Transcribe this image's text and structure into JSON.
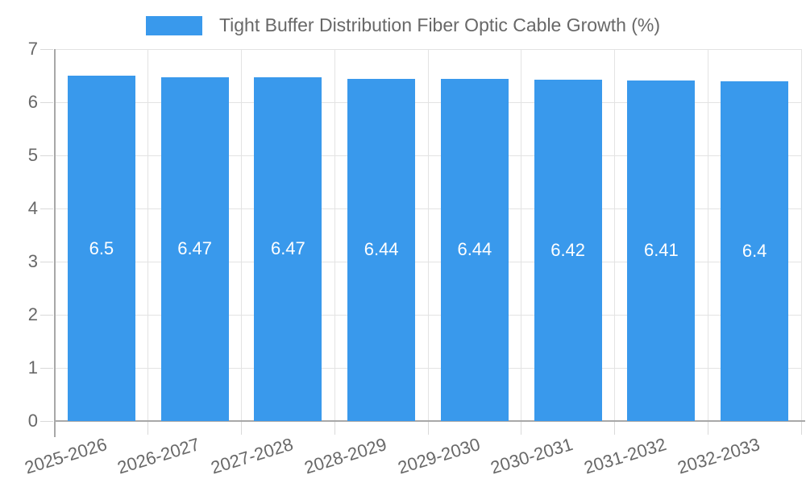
{
  "legend": {
    "label": "Tight Buffer Distribution Fiber Optic Cable Growth (%)"
  },
  "chart_data": {
    "type": "bar",
    "title": "",
    "series_name": "Tight Buffer Distribution Fiber Optic Cable Growth (%)",
    "categories": [
      "2025-2026",
      "2026-2027",
      "2027-2028",
      "2028-2029",
      "2029-2030",
      "2030-2031",
      "2031-2032",
      "2032-2033"
    ],
    "values": [
      6.5,
      6.47,
      6.47,
      6.44,
      6.44,
      6.42,
      6.41,
      6.4
    ],
    "value_labels": [
      "6.5",
      "6.47",
      "6.47",
      "6.44",
      "6.44",
      "6.42",
      "6.41",
      "6.4"
    ],
    "xlabel": "",
    "ylabel": "",
    "ylim": [
      0,
      7
    ],
    "y_ticks": [
      0,
      1,
      2,
      3,
      4,
      5,
      6,
      7
    ],
    "grid": true,
    "legend_position": "top",
    "colors": {
      "bar": "#3999ec",
      "grid": "#e3e3e3",
      "tick": "#d9d9d9",
      "axis": "#a8a8a8",
      "label": "#686868",
      "value-text": "#ffffff",
      "background": "#ffffff"
    }
  }
}
